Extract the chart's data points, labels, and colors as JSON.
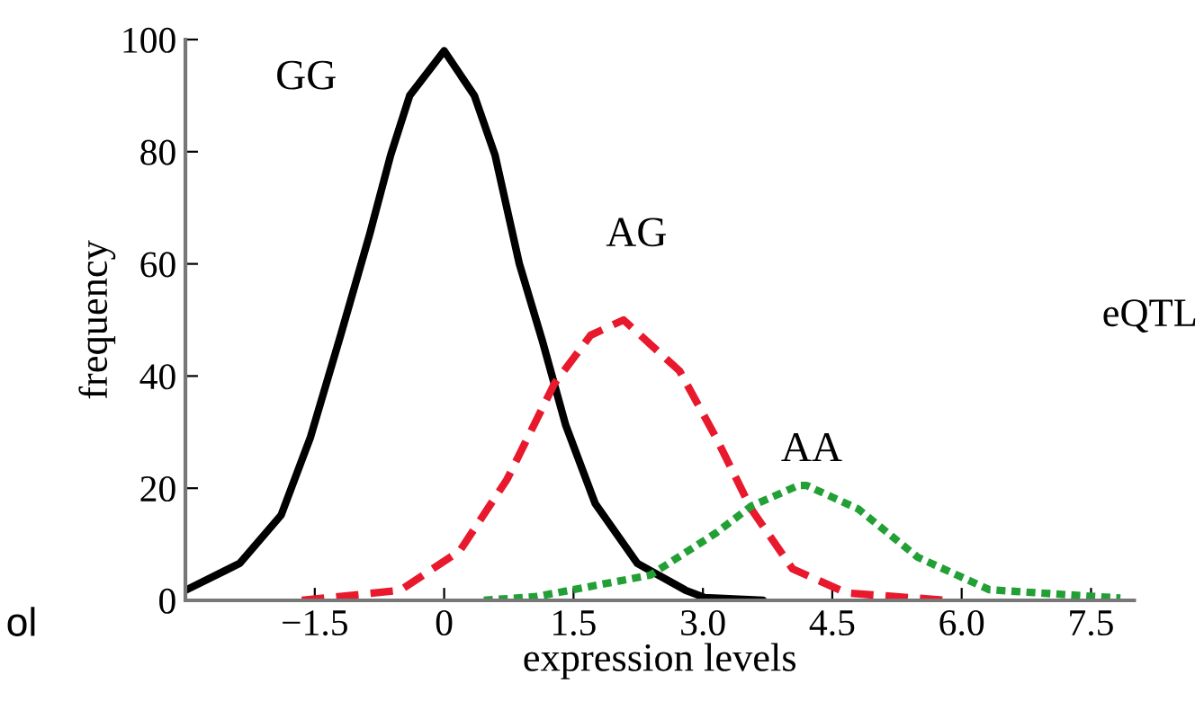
{
  "chart_data": {
    "type": "line",
    "xlabel": "expression levels",
    "ylabel": "frequency",
    "xlim": [
      -3,
      8
    ],
    "ylim": [
      0,
      100
    ],
    "xticks": [
      {
        "value": -1.5,
        "label": "−1.5"
      },
      0,
      1.5,
      {
        "value": 3,
        "label": "3.0"
      },
      4.5,
      {
        "value": 6,
        "label": "6.0"
      },
      7.5
    ],
    "yticks": [
      0,
      20,
      40,
      60,
      80,
      100
    ],
    "grid": false,
    "legend": false,
    "marker": "none",
    "series": [
      {
        "name": "GG",
        "color": "#000000",
        "line_style": "solid",
        "x": [
          -3.0,
          -2.37,
          -1.89,
          -1.55,
          -1.2,
          -0.86,
          -0.62,
          -0.4,
          0,
          0.35,
          0.59,
          0.87,
          1.14,
          1.41,
          1.75,
          2.24,
          2.8,
          3.02,
          3.7
        ],
        "values": [
          1.8,
          6.6,
          15.2,
          29.1,
          47.3,
          65.5,
          79.4,
          90,
          98,
          90,
          79.4,
          60.1,
          46.2,
          31.2,
          17.3,
          6.6,
          1.8,
          0.5,
          0
        ]
      },
      {
        "name": "AG",
        "color": "#e8192c",
        "line_style": "dashed",
        "x": [
          -1.65,
          -0.51,
          0.18,
          0.73,
          1.28,
          1.7,
          2.08,
          2.73,
          3.15,
          3.56,
          4.04,
          4.67,
          5.84
        ],
        "values": [
          0,
          1.8,
          8.8,
          21.6,
          38.7,
          47.3,
          50,
          40.9,
          29.1,
          16.3,
          5.6,
          1.3,
          0
        ]
      },
      {
        "name": "AA",
        "color": "#22a035",
        "line_style": "dotted",
        "x": [
          0.46,
          1.08,
          2.39,
          3.15,
          3.56,
          4.11,
          4.2,
          4.8,
          5.49,
          6.32,
          7.84
        ],
        "values": [
          0,
          0.7,
          4.5,
          12,
          16.8,
          20.5,
          20.5,
          16.3,
          7.7,
          1.9,
          0.4
        ]
      }
    ],
    "annotations": [
      "eQTL",
      "ol"
    ]
  }
}
